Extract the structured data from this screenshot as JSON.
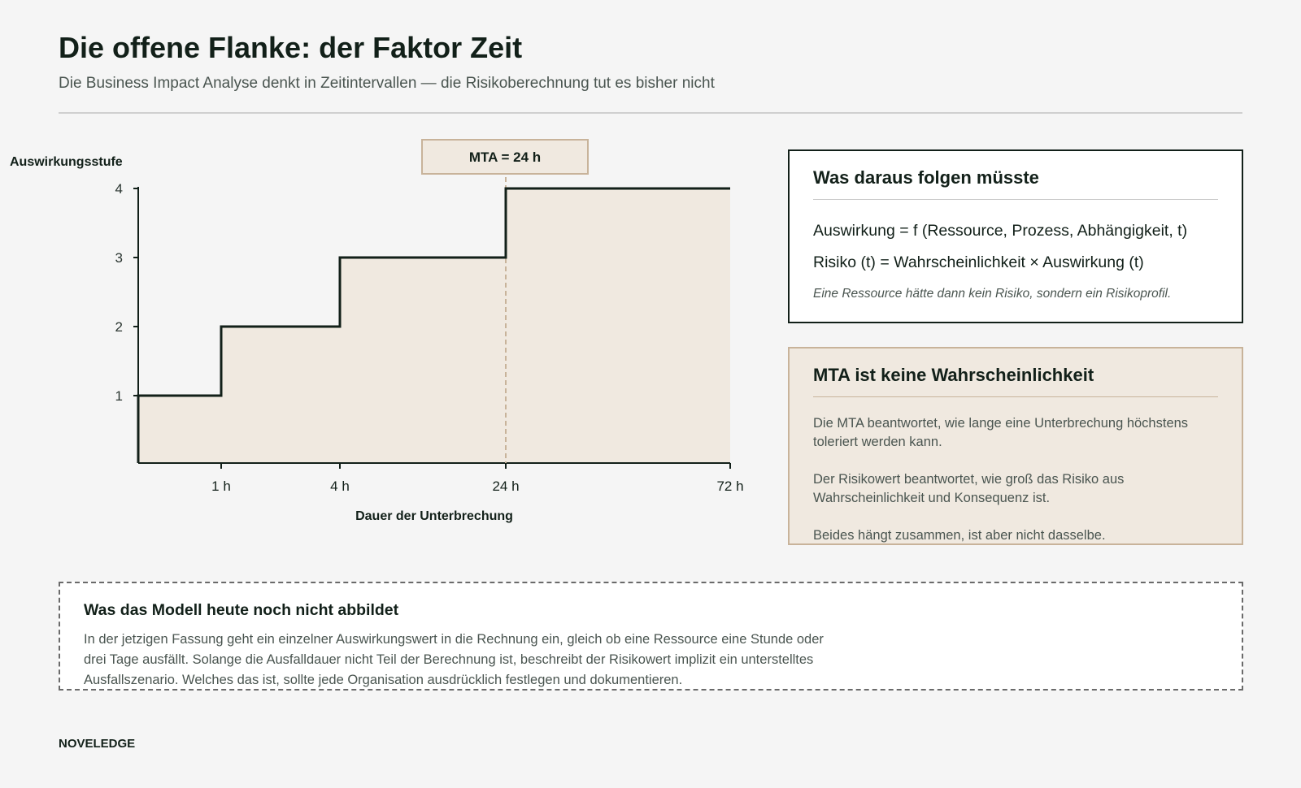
{
  "header": {
    "title": "Die offene Flanke: der Faktor Zeit",
    "subtitle": "Die Business Impact Analyse denkt in Zeitintervallen — die Risikoberechnung tut es bisher nicht"
  },
  "chart_data": {
    "type": "line",
    "step": true,
    "x_categories": [
      "0",
      "1 h",
      "4 h",
      "24 h",
      "72 h"
    ],
    "x_tick_labels": [
      "1 h",
      "4 h",
      "24 h",
      "72 h"
    ],
    "y_values": [
      1,
      2,
      3,
      4,
      4
    ],
    "ylabel": "Auswirkungsstufe",
    "xlabel": "Dauer der Unterbrechung",
    "y_ticks": [
      1,
      2,
      3,
      4
    ],
    "ylim": [
      0,
      4
    ],
    "marker": {
      "x": "24 h",
      "label": "MTA = 24 h"
    },
    "colors": {
      "line": "#122019",
      "fill": "#f0e9e0",
      "marker": "#c8b39a"
    }
  },
  "formula_box": {
    "title": "Was daraus folgen müsste",
    "formula1": "Auswirkung = f (Ressource, Prozess, Abhängigkeit, t)",
    "formula2": "Risiko (t) = Wahrscheinlichkeit × Auswirkung (t)",
    "note": "Eine Ressource hätte dann kein Risiko, sondern ein Risikoprofil."
  },
  "mta_box": {
    "title": "MTA ist keine Wahrscheinlichkeit",
    "p1": "Die MTA beantwortet, wie lange eine Unterbrechung höchstens toleriert werden kann.",
    "p2": "Der Risikowert beantwortet, wie groß das Risiko aus Wahrscheinlichkeit und Konsequenz ist.",
    "p3": "Beides hängt zusammen, ist aber nicht dasselbe."
  },
  "model_box": {
    "title": "Was das Modell heute noch nicht abbildet",
    "text": "In der jetzigen Fassung geht ein einzelner Auswirkungswert in die Rechnung ein, gleich ob eine Ressource eine Stunde oder drei Tage ausfällt. Solange die Ausfalldauer nicht Teil der Berechnung ist, beschreibt der Risikowert implizit ein unterstelltes Ausfallszenario. Welches das ist, sollte jede Organisation ausdrücklich festlegen und dokumentieren."
  },
  "footer": {
    "brand": "NOVELEDGE"
  }
}
